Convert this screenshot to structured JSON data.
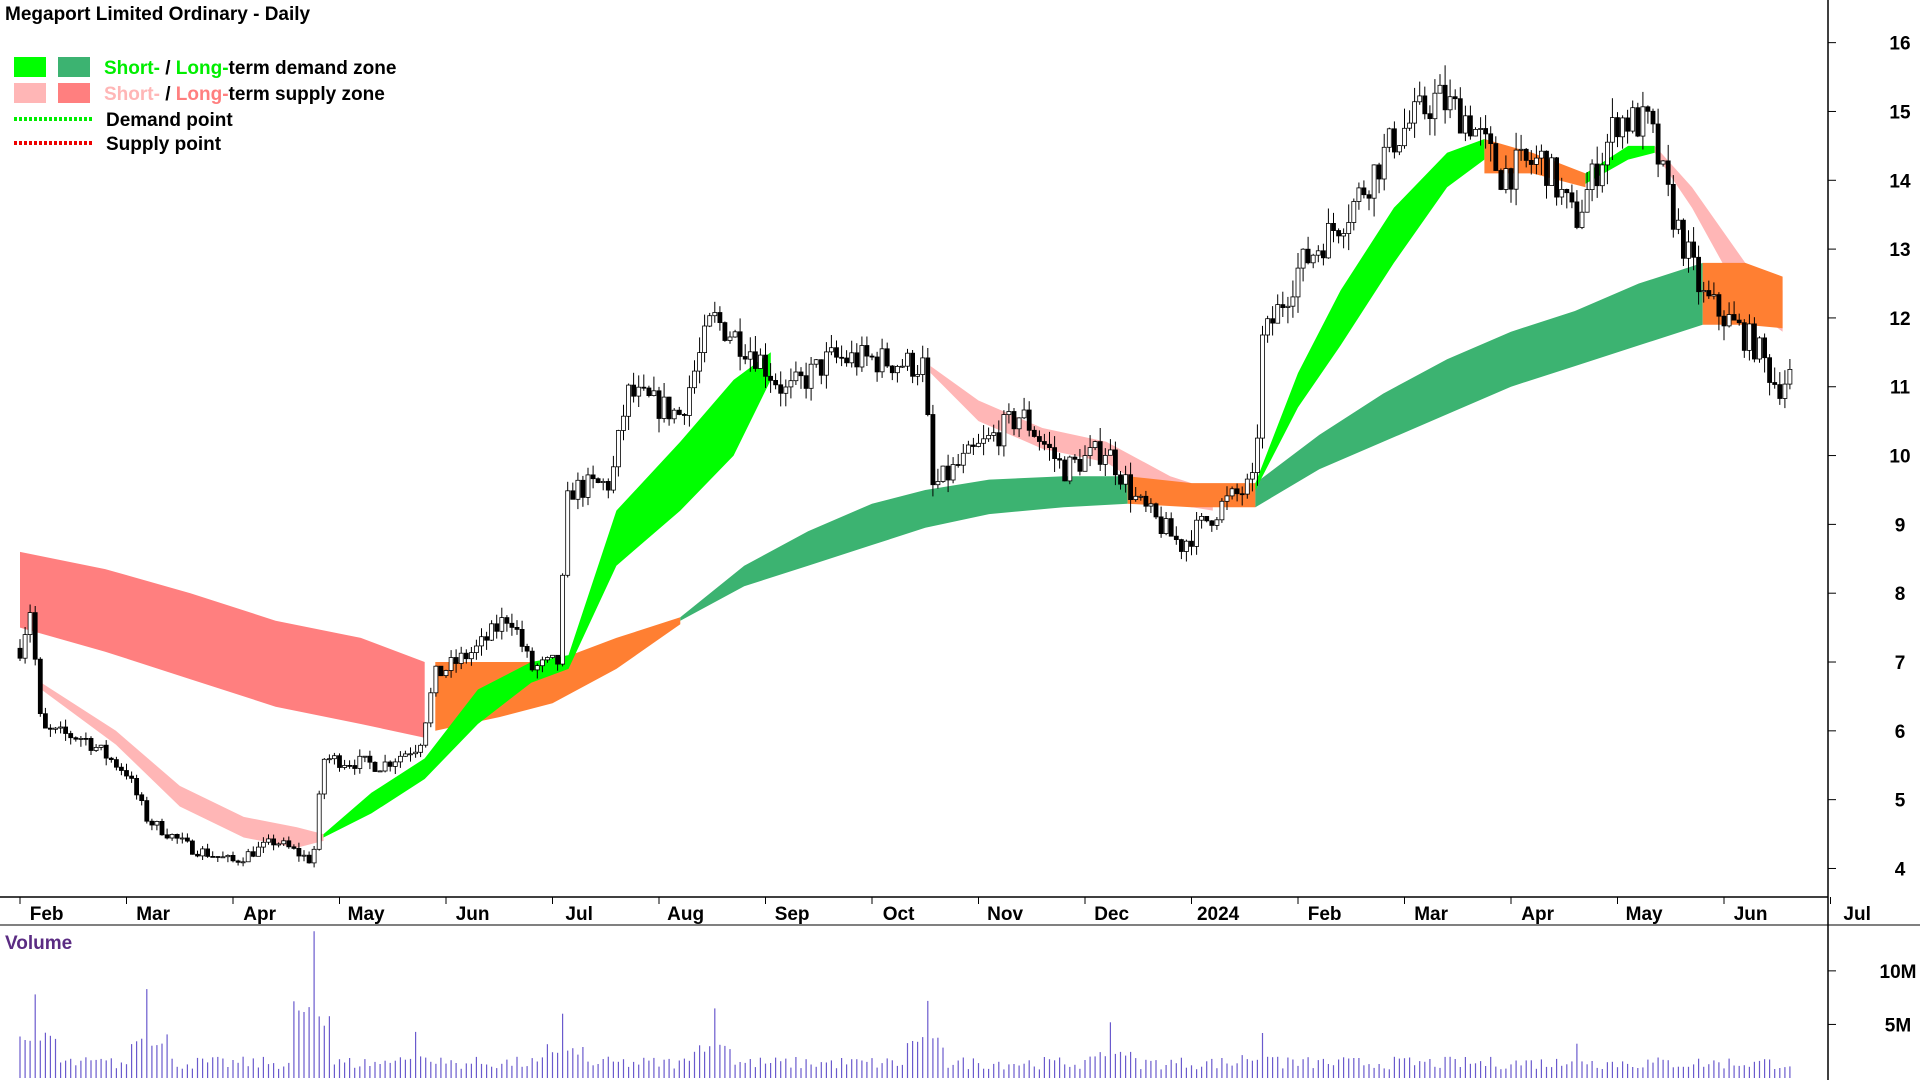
{
  "colors": {
    "short_demand": "#00ff00",
    "long_demand": "#3cb371",
    "short_supply": "#ffb6b6",
    "long_supply": "#ff7f7f",
    "overlap": "#ff7f32",
    "demand_point": "#00ee00",
    "supply_point": "#ee0000",
    "volume_bar": "#6a5acd",
    "volume_label": "#5b2c83",
    "axis": "#000000"
  },
  "legend": {
    "zone_label_short": "Short-",
    "zone_sep": " / ",
    "zone_label_long": "Long-",
    "demand_zone_suffix": "term demand zone",
    "supply_zone_suffix": "term supply zone",
    "demand_point": "Demand point",
    "supply_point": "Supply point"
  },
  "chart_data": [
    {
      "type": "candlestick",
      "title": "Megaport Limited Ordinary - Daily",
      "xlabels": [
        "Feb",
        "Mar",
        "Apr",
        "May",
        "Jun",
        "Jul",
        "Aug",
        "Sep",
        "Oct",
        "Nov",
        "Dec",
        "2024",
        "Feb",
        "Mar",
        "Apr",
        "May",
        "Jun",
        "Jul"
      ],
      "ylim": [
        3.6,
        16.3
      ],
      "yticks": [
        4,
        5,
        6,
        7,
        8,
        9,
        10,
        11,
        12,
        13,
        14,
        15,
        16
      ],
      "price_path": [
        {
          "month": 0.0,
          "price": 7.2
        },
        {
          "month": 0.1,
          "price": 7.8
        },
        {
          "month": 0.2,
          "price": 6.0
        },
        {
          "month": 0.6,
          "price": 5.9
        },
        {
          "month": 1.0,
          "price": 5.4
        },
        {
          "month": 1.2,
          "price": 4.7
        },
        {
          "month": 1.6,
          "price": 4.3
        },
        {
          "month": 2.0,
          "price": 4.1
        },
        {
          "month": 2.4,
          "price": 4.4
        },
        {
          "month": 2.75,
          "price": 4.1
        },
        {
          "month": 2.85,
          "price": 5.6
        },
        {
          "month": 3.4,
          "price": 5.5
        },
        {
          "month": 3.75,
          "price": 5.8
        },
        {
          "month": 3.9,
          "price": 6.8
        },
        {
          "month": 4.3,
          "price": 7.2
        },
        {
          "month": 4.6,
          "price": 7.7
        },
        {
          "month": 4.8,
          "price": 6.9
        },
        {
          "month": 5.05,
          "price": 7.0
        },
        {
          "month": 5.15,
          "price": 9.5
        },
        {
          "month": 5.55,
          "price": 9.6
        },
        {
          "month": 5.7,
          "price": 10.9
        },
        {
          "month": 6.2,
          "price": 10.6
        },
        {
          "month": 6.5,
          "price": 12.0
        },
        {
          "month": 6.9,
          "price": 11.5
        },
        {
          "month": 7.2,
          "price": 10.9
        },
        {
          "month": 7.6,
          "price": 11.4
        },
        {
          "month": 8.0,
          "price": 11.4
        },
        {
          "month": 8.5,
          "price": 11.3
        },
        {
          "month": 8.55,
          "price": 9.5
        },
        {
          "month": 9.0,
          "price": 10.1
        },
        {
          "month": 9.4,
          "price": 10.6
        },
        {
          "month": 9.8,
          "price": 9.8
        },
        {
          "month": 10.2,
          "price": 10.1
        },
        {
          "month": 10.5,
          "price": 9.3
        },
        {
          "month": 10.9,
          "price": 8.7
        },
        {
          "month": 11.3,
          "price": 9.3
        },
        {
          "month": 11.6,
          "price": 9.6
        },
        {
          "month": 11.65,
          "price": 11.6
        },
        {
          "month": 12.0,
          "price": 12.7
        },
        {
          "month": 12.5,
          "price": 13.6
        },
        {
          "month": 12.9,
          "price": 14.6
        },
        {
          "month": 13.3,
          "price": 15.2
        },
        {
          "month": 13.6,
          "price": 14.9
        },
        {
          "month": 13.9,
          "price": 14.1
        },
        {
          "month": 14.3,
          "price": 14.3
        },
        {
          "month": 14.6,
          "price": 13.4
        },
        {
          "month": 15.0,
          "price": 14.9
        },
        {
          "month": 15.3,
          "price": 14.8
        },
        {
          "month": 15.5,
          "price": 13.6
        },
        {
          "month": 15.8,
          "price": 12.3
        },
        {
          "month": 16.3,
          "price": 11.6
        },
        {
          "month": 16.5,
          "price": 11.0
        },
        {
          "month": 16.65,
          "price": 11.2
        }
      ],
      "zones": {
        "long_supply_early": [
          {
            "month": 0.0,
            "upper": 8.6,
            "lower": 7.5
          },
          {
            "month": 0.8,
            "upper": 8.35,
            "lower": 7.15
          },
          {
            "month": 1.6,
            "upper": 8.0,
            "lower": 6.75
          },
          {
            "month": 2.4,
            "upper": 7.6,
            "lower": 6.35
          },
          {
            "month": 3.2,
            "upper": 7.35,
            "lower": 6.1
          },
          {
            "month": 3.8,
            "upper": 7.0,
            "lower": 5.9
          }
        ],
        "short_supply_early": [
          {
            "month": 0.2,
            "upper": 6.7,
            "lower": 6.6
          },
          {
            "month": 0.9,
            "upper": 6.0,
            "lower": 5.8
          },
          {
            "month": 1.5,
            "upper": 5.2,
            "lower": 4.9
          },
          {
            "month": 2.1,
            "upper": 4.75,
            "lower": 4.45
          },
          {
            "month": 2.6,
            "upper": 4.6,
            "lower": 4.3
          },
          {
            "month": 2.85,
            "upper": 4.5,
            "lower": 4.4
          }
        ],
        "short_demand": [
          {
            "month": 2.85,
            "upper": 4.5,
            "lower": 4.45
          },
          {
            "month": 3.3,
            "upper": 5.1,
            "lower": 4.8
          },
          {
            "month": 3.8,
            "upper": 5.6,
            "lower": 5.3
          },
          {
            "month": 4.3,
            "upper": 6.6,
            "lower": 6.1
          },
          {
            "month": 4.8,
            "upper": 7.0,
            "lower": 6.7
          },
          {
            "month": 5.15,
            "upper": 7.1,
            "lower": 6.9
          },
          {
            "month": 5.6,
            "upper": 9.2,
            "lower": 8.4
          },
          {
            "month": 6.2,
            "upper": 10.2,
            "lower": 9.2
          },
          {
            "month": 6.7,
            "upper": 11.1,
            "lower": 10.0
          },
          {
            "month": 7.05,
            "upper": 11.5,
            "lower": 11.1
          }
        ],
        "overlap_mid": [
          {
            "month": 3.9,
            "upper": 7.0,
            "lower": 6.0
          },
          {
            "month": 4.5,
            "upper": 7.0,
            "lower": 6.2
          },
          {
            "month": 5.0,
            "upper": 7.0,
            "lower": 6.4
          },
          {
            "month": 5.6,
            "upper": 7.35,
            "lower": 6.9
          },
          {
            "month": 6.2,
            "upper": 7.65,
            "lower": 7.55
          }
        ],
        "long_demand_1": [
          {
            "month": 6.2,
            "upper": 7.65,
            "lower": 7.6
          },
          {
            "month": 6.8,
            "upper": 8.4,
            "lower": 8.1
          },
          {
            "month": 7.4,
            "upper": 8.9,
            "lower": 8.4
          },
          {
            "month": 8.0,
            "upper": 9.3,
            "lower": 8.7
          },
          {
            "month": 8.5,
            "upper": 9.5,
            "lower": 8.95
          },
          {
            "month": 9.1,
            "upper": 9.65,
            "lower": 9.15
          },
          {
            "month": 9.8,
            "upper": 9.7,
            "lower": 9.25
          },
          {
            "month": 10.4,
            "upper": 9.7,
            "lower": 9.3
          }
        ],
        "short_supply_mid": [
          {
            "month": 8.55,
            "upper": 11.3,
            "lower": 11.2
          },
          {
            "month": 9.0,
            "upper": 10.8,
            "lower": 10.5
          },
          {
            "month": 9.6,
            "upper": 10.4,
            "lower": 10.1
          },
          {
            "month": 10.2,
            "upper": 10.2,
            "lower": 9.9
          },
          {
            "month": 10.8,
            "upper": 9.7,
            "lower": 9.3
          },
          {
            "month": 11.2,
            "upper": 9.5,
            "lower": 9.2
          }
        ],
        "overlap_dec": [
          {
            "month": 10.4,
            "upper": 9.7,
            "lower": 9.3
          },
          {
            "month": 11.0,
            "upper": 9.6,
            "lower": 9.25
          },
          {
            "month": 11.6,
            "upper": 9.6,
            "lower": 9.25
          }
        ],
        "long_demand_2": [
          {
            "month": 11.6,
            "upper": 9.6,
            "lower": 9.25
          },
          {
            "month": 12.2,
            "upper": 10.3,
            "lower": 9.8
          },
          {
            "month": 12.8,
            "upper": 10.9,
            "lower": 10.2
          },
          {
            "month": 13.4,
            "upper": 11.4,
            "lower": 10.6
          },
          {
            "month": 14.0,
            "upper": 11.8,
            "lower": 11.0
          },
          {
            "month": 14.6,
            "upper": 12.1,
            "lower": 11.3
          },
          {
            "month": 15.2,
            "upper": 12.5,
            "lower": 11.6
          },
          {
            "month": 15.8,
            "upper": 12.8,
            "lower": 11.9
          }
        ],
        "short_demand_2": [
          {
            "month": 11.6,
            "upper": 9.6,
            "lower": 9.5
          },
          {
            "month": 12.0,
            "upper": 11.2,
            "lower": 10.7
          },
          {
            "month": 12.4,
            "upper": 12.4,
            "lower": 11.6
          },
          {
            "month": 12.9,
            "upper": 13.6,
            "lower": 12.8
          },
          {
            "month": 13.4,
            "upper": 14.4,
            "lower": 13.9
          },
          {
            "month": 13.75,
            "upper": 14.6,
            "lower": 14.3
          }
        ],
        "overlap_apr": [
          {
            "month": 13.75,
            "upper": 14.6,
            "lower": 14.1
          },
          {
            "month": 14.2,
            "upper": 14.4,
            "lower": 14.1
          },
          {
            "month": 14.7,
            "upper": 14.1,
            "lower": 13.9
          }
        ],
        "short_demand_3": [
          {
            "month": 14.7,
            "upper": 14.1,
            "lower": 13.95
          },
          {
            "month": 15.1,
            "upper": 14.5,
            "lower": 14.3
          },
          {
            "month": 15.35,
            "upper": 14.5,
            "lower": 14.4
          }
        ],
        "short_supply_late": [
          {
            "month": 15.35,
            "upper": 14.5,
            "lower": 14.4
          },
          {
            "month": 15.7,
            "upper": 13.9,
            "lower": 13.6
          },
          {
            "month": 16.2,
            "upper": 12.8,
            "lower": 12.2
          },
          {
            "month": 16.55,
            "upper": 12.4,
            "lower": 11.8
          }
        ],
        "overlap_late": [
          {
            "month": 15.8,
            "upper": 12.8,
            "lower": 11.9
          },
          {
            "month": 16.2,
            "upper": 12.8,
            "lower": 11.9
          },
          {
            "month": 16.55,
            "upper": 12.6,
            "lower": 11.85
          }
        ]
      }
    },
    {
      "type": "bar",
      "title": "Volume",
      "yticks": [
        {
          "value": 5000000,
          "label": "5M"
        },
        {
          "value": 10000000,
          "label": "10M"
        }
      ],
      "ylim": [
        0,
        14000000
      ],
      "spikes": [
        {
          "month": 0.15,
          "value": 7800000
        },
        {
          "month": 1.2,
          "value": 8300000
        },
        {
          "month": 2.75,
          "value": 13700000
        },
        {
          "month": 3.7,
          "value": 4300000
        },
        {
          "month": 5.1,
          "value": 6000000
        },
        {
          "month": 6.5,
          "value": 6500000
        },
        {
          "month": 8.5,
          "value": 7200000
        },
        {
          "month": 10.25,
          "value": 5200000
        },
        {
          "month": 11.65,
          "value": 4200000
        },
        {
          "month": 14.6,
          "value": 3200000
        }
      ]
    }
  ]
}
